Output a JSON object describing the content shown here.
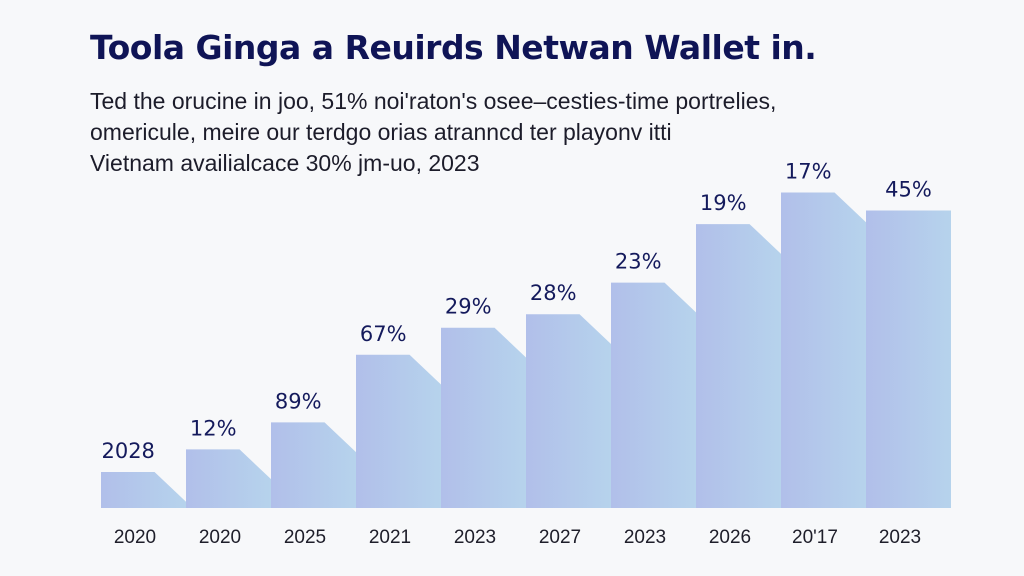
{
  "chart_data": {
    "type": "area",
    "style": "stepped",
    "title": "Toola Ginga a Reuirds Netwan Wallet in.",
    "subtitle_lines": [
      "Ted the orucine in joo, 51% noi'raton's osee–cesties-time portrelies,",
      "omericule, meire our terdgo orias atranncd ter playonv itti",
      "Vietnam availialcace 30% jm-uo, 2023"
    ],
    "categories": [
      "2020",
      "2020",
      "2025",
      "2021",
      "2023",
      "2027",
      "2023",
      "2026",
      "20'17",
      "2023"
    ],
    "value_labels": [
      "2028",
      "12%",
      "89%",
      "67%",
      "29%",
      "28%",
      "23%",
      "19%",
      "17%",
      "45%"
    ],
    "step_levels": [
      8,
      13,
      19,
      34,
      40,
      43,
      50,
      63,
      70,
      66
    ],
    "ylim": [
      0,
      75
    ],
    "xlabel": "",
    "ylabel": "",
    "grid": false,
    "legend": "none",
    "colors": {
      "fill_start": "#b1bfea",
      "fill_end": "#b6d3ec",
      "label": "#141a5c",
      "title": "#0f1456"
    }
  }
}
